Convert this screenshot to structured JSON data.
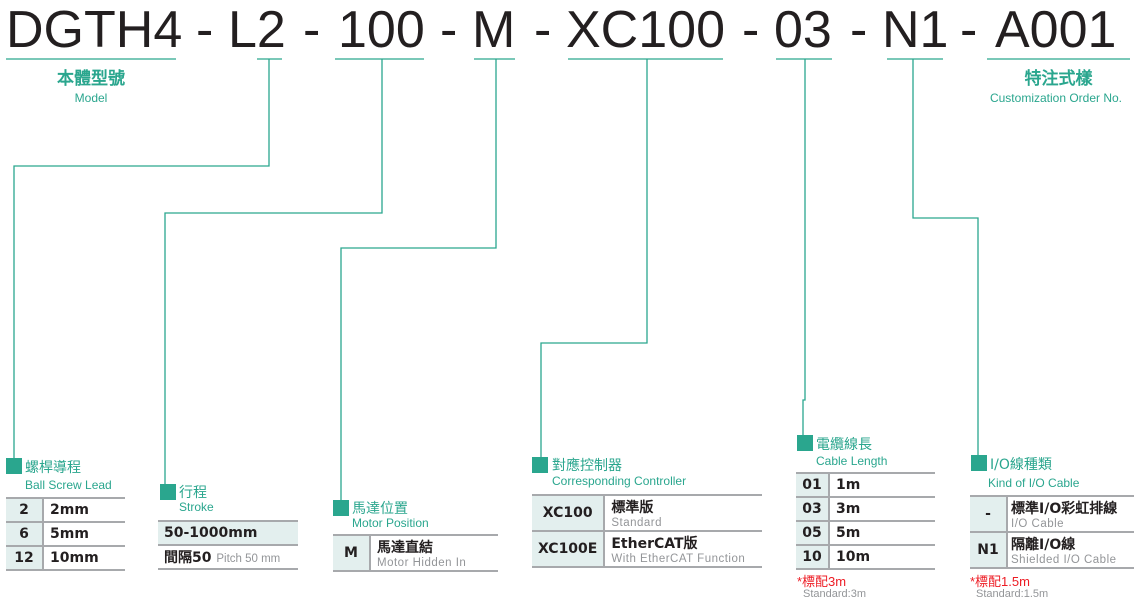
{
  "code": {
    "segments": [
      "DGTH4",
      "L2",
      "100",
      "M",
      "XC100",
      "03",
      "N1",
      "A001"
    ],
    "separator": "-"
  },
  "model_label": {
    "zh": "本體型號",
    "en": "Model"
  },
  "custom_label": {
    "zh": "特注式樣",
    "en": "Customization Order No."
  },
  "accent_color": "#2aa68e",
  "lead": {
    "title": "螺桿導程",
    "subtitle": "Ball Screw Lead",
    "rows": [
      {
        "code": "2",
        "value": "2mm"
      },
      {
        "code": "6",
        "value": "5mm"
      },
      {
        "code": "12",
        "value": "10mm"
      }
    ]
  },
  "stroke": {
    "title": "行程",
    "subtitle": "Stroke",
    "range": "50-1000mm",
    "pitch_zh": "間隔50",
    "pitch_en": "Pitch 50 mm"
  },
  "motor": {
    "title": "馬達位置",
    "subtitle": "Motor Position",
    "rows": [
      {
        "code": "M",
        "value": "馬達直結",
        "en": "Motor Hidden In"
      }
    ]
  },
  "controller": {
    "title": "對應控制器",
    "subtitle": "Corresponding Controller",
    "rows": [
      {
        "code": "XC100",
        "value": "標準版",
        "en": "Standard"
      },
      {
        "code": "XC100E",
        "value": "EtherCAT版",
        "en": "With EtherCAT Function"
      }
    ]
  },
  "cable": {
    "title": "電纜線長",
    "subtitle": "Cable Length",
    "rows": [
      {
        "code": "01",
        "value": "1m"
      },
      {
        "code": "03",
        "value": "3m"
      },
      {
        "code": "05",
        "value": "5m"
      },
      {
        "code": "10",
        "value": "10m"
      }
    ],
    "note_zh": "*標配3m",
    "note_en": "Standard:3m"
  },
  "io": {
    "title": "I/O線種類",
    "subtitle": "Kind of I/O Cable",
    "rows": [
      {
        "code": "-",
        "value": "標準I/O彩虹排線",
        "en": "I/O Cable"
      },
      {
        "code": "N1",
        "value": "隔離I/O線",
        "en": "Shielded I/O Cable"
      }
    ],
    "note_zh": "*標配1.5m",
    "note_en": "Standard:1.5m"
  }
}
